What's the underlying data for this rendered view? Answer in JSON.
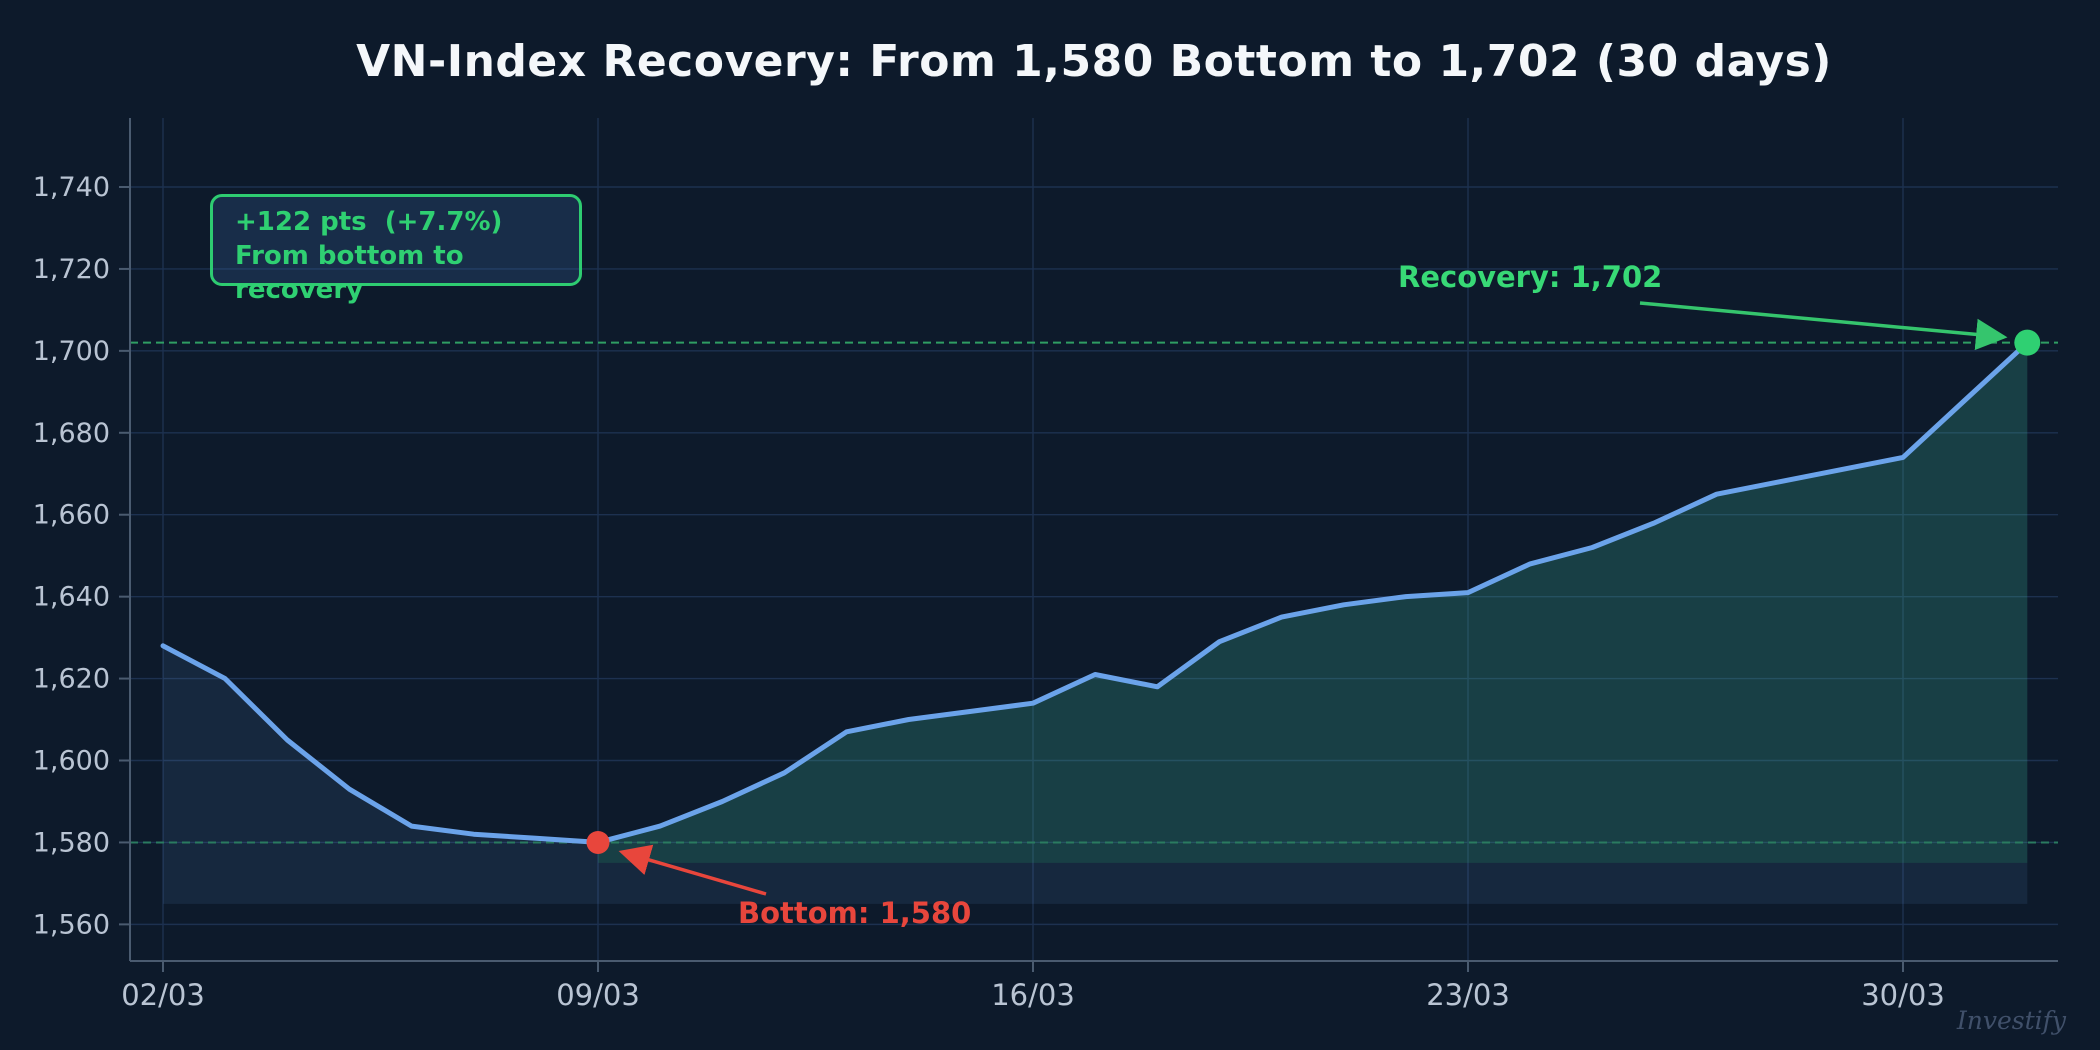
{
  "title": "VN-Index Recovery: From 1,580 Bottom to 1,702 (30 days)",
  "annotations": {
    "gain_line1": "+122 pts  (+7.7%)",
    "gain_line2": "From bottom to recovery",
    "recovery_label": "Recovery: 1,702",
    "bottom_label": "Bottom: 1,580",
    "watermark": "Investify"
  },
  "chart_data": {
    "type": "line",
    "title": "VN-Index Recovery: From 1,580 Bottom to 1,702 (30 days)",
    "x_start_date": "02/03",
    "x_tick_labels": [
      "02/03",
      "09/03",
      "16/03",
      "23/03",
      "30/03"
    ],
    "x_tick_days": [
      0,
      7,
      14,
      21,
      28
    ],
    "y_tick_values": [
      1560,
      1580,
      1600,
      1620,
      1640,
      1660,
      1680,
      1700,
      1720,
      1740
    ],
    "y_tick_labels": [
      "1,560",
      "1,580",
      "1,600",
      "1,620",
      "1,640",
      "1,660",
      "1,680",
      "1,700",
      "1,720",
      "1,740"
    ],
    "ylim": [
      1551,
      1757
    ],
    "grid": true,
    "values": [
      1628,
      1620,
      1605,
      1593,
      1584,
      1582,
      1581,
      1580,
      1584,
      1590,
      1597,
      1607,
      1610,
      1612,
      1614,
      1621,
      1618,
      1629,
      1635,
      1638,
      1640,
      1641,
      1648,
      1652,
      1658,
      1665,
      1668,
      1671,
      1674,
      1688,
      1702
    ],
    "bottom_point": {
      "day_index": 7,
      "date": "09/03",
      "value": 1580
    },
    "recovery_point": {
      "day_index": 30,
      "value": 1702
    },
    "reference_lines": [
      {
        "value": 1702,
        "style": "dashed",
        "color": "#2f9e63"
      },
      {
        "value": 1580,
        "style": "dashed",
        "color": "#2a7b60"
      }
    ],
    "fills": [
      {
        "name": "decline-area-fill",
        "from_day": 0,
        "to_day": 30,
        "baseline": 1565,
        "color": "rgba(104,164,233,0.10)"
      },
      {
        "name": "recovery-area-fill",
        "from_day": 7,
        "to_day": 30,
        "baseline": 1575,
        "color": "rgba(46,204,113,0.14)"
      }
    ],
    "colors": {
      "background": "#0d1a2b",
      "line": "#6ba3ea",
      "gridline": "#1d3150",
      "spine": "#4a5b70",
      "tick_label": "#b9c4d3",
      "bottom_accent": "#e8463c",
      "recovery_accent": "#2fd072"
    }
  }
}
